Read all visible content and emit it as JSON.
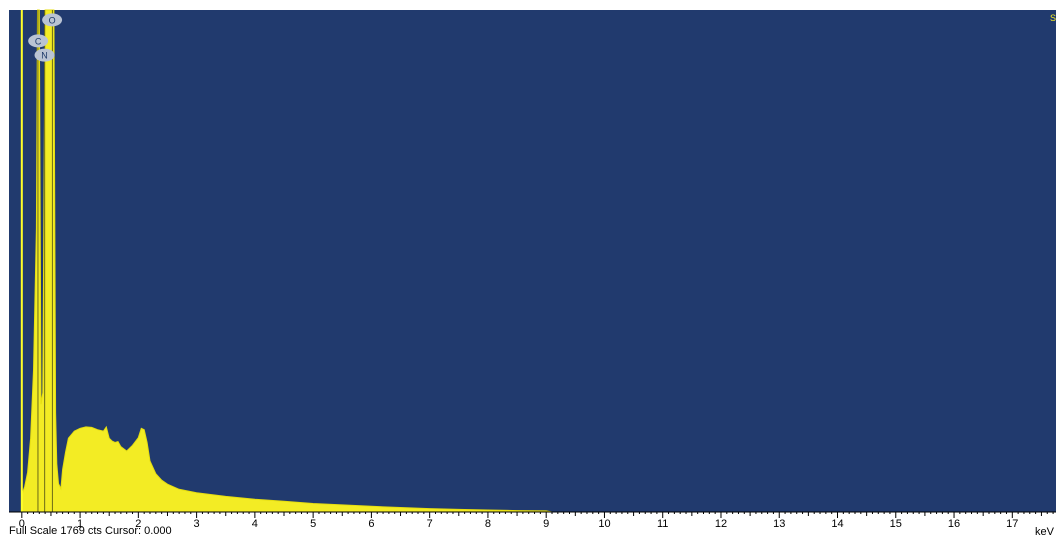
{
  "colors": {
    "plot_background": "#213a6e",
    "spectrum_fill": "#f3ec24",
    "spectrum_stroke": "#e6de10",
    "marker_line": "#ffff2a",
    "label_badge_fill": "#b9c3d3",
    "label_badge_text": "#1d3a6a",
    "axis": "#000000"
  },
  "status": {
    "full_scale": "Full Scale 1769 cts",
    "cursor": "Cursor: 0.000"
  },
  "corner_label": "S",
  "chart_data": {
    "type": "area",
    "title": "",
    "xlabel": "keV",
    "ylabel": "",
    "xlim": [
      -0.22,
      17.75
    ],
    "ylim": [
      0,
      1769
    ],
    "grid": false,
    "legend": "none",
    "x_ticks": [
      "0",
      "1",
      "2",
      "3",
      "4",
      "5",
      "6",
      "7",
      "8",
      "9",
      "10",
      "11",
      "12",
      "13",
      "14",
      "15",
      "16",
      "17"
    ],
    "peak_labels": [
      {
        "text": "O",
        "x": 0.52,
        "y": 1734
      },
      {
        "text": "C",
        "x": 0.28,
        "y": 1660
      },
      {
        "text": "N",
        "x": 0.39,
        "y": 1610
      }
    ],
    "element_lines_keV": [
      0.0,
      0.277,
      0.392,
      0.525
    ],
    "series": [
      {
        "x": [
          0.0,
          0.05,
          0.1,
          0.15,
          0.2,
          0.25,
          0.27,
          0.3,
          0.33,
          0.36,
          0.4,
          0.43,
          0.46,
          0.49,
          0.52,
          0.55,
          0.58,
          0.6,
          0.63,
          0.67,
          0.7,
          0.75,
          0.8,
          0.9,
          1.0,
          1.1,
          1.2,
          1.3,
          1.4,
          1.45,
          1.5,
          1.55,
          1.6,
          1.65,
          1.7,
          1.8,
          1.9,
          2.0,
          2.05,
          2.1,
          2.15,
          2.2,
          2.3,
          2.4,
          2.5,
          2.7,
          3.0,
          3.5,
          4.0,
          4.5,
          5.0,
          5.5,
          6.0,
          6.5,
          7.0,
          7.5,
          8.0,
          8.5,
          9.0,
          9.1,
          10.0,
          12.0,
          14.0,
          17.5
        ],
        "values": [
          60,
          90,
          140,
          260,
          500,
          1000,
          1769,
          1769,
          380,
          420,
          1769,
          1769,
          1769,
          1769,
          1769,
          1769,
          350,
          170,
          100,
          82,
          150,
          210,
          260,
          285,
          295,
          300,
          298,
          290,
          285,
          300,
          260,
          250,
          245,
          248,
          230,
          215,
          235,
          262,
          295,
          290,
          245,
          180,
          135,
          112,
          98,
          80,
          68,
          55,
          45,
          38,
          30,
          25,
          20,
          16,
          12,
          9,
          7,
          5,
          4,
          0,
          0,
          0,
          0,
          0
        ]
      }
    ]
  }
}
